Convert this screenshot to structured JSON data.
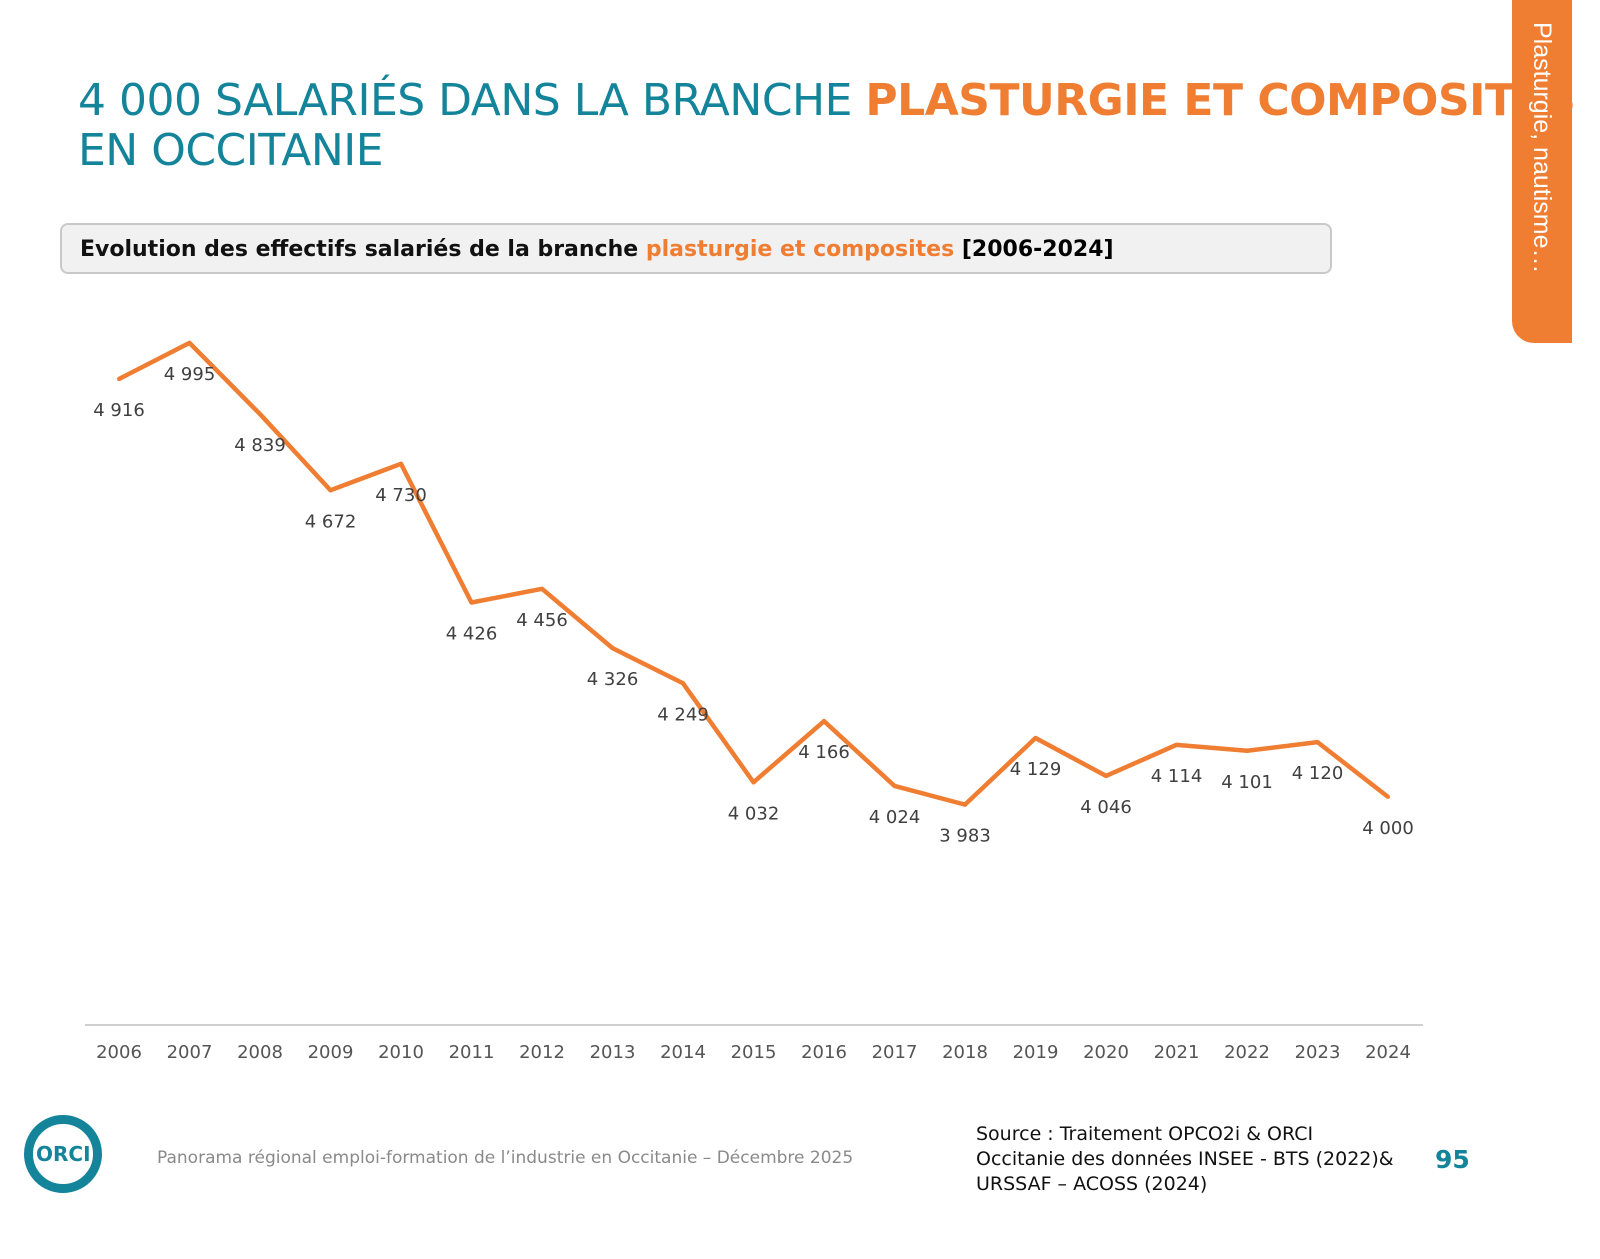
{
  "title": {
    "part1": "4 000 SALARIÉS DANS LA BRANCHE ",
    "part2": "PLASTURGIE ET COMPOSITES",
    "part3": " EN OCCITANIE"
  },
  "side_tab": "Plasturgie, nautisme…",
  "chart_data": {
    "type": "line",
    "title": {
      "part1": "Evolution des effectifs salariés de la branche ",
      "part2": "plasturgie et composites",
      "part3": " [2006-2024]"
    },
    "categories": [
      "2006",
      "2007",
      "2008",
      "2009",
      "2010",
      "2011",
      "2012",
      "2013",
      "2014",
      "2015",
      "2016",
      "2017",
      "2018",
      "2019",
      "2020",
      "2021",
      "2022",
      "2023",
      "2024"
    ],
    "values": [
      4916,
      4995,
      4839,
      4672,
      4730,
      4426,
      4456,
      4326,
      4249,
      4032,
      4166,
      4024,
      3983,
      4129,
      4046,
      4114,
      4101,
      4120,
      4000
    ],
    "data_labels": [
      "4 916",
      "4 995",
      "4 839",
      "4 672",
      "4 730",
      "4 426",
      "4 456",
      "4 326",
      "4 249",
      "4 032",
      "4 166",
      "4 024",
      "3 983",
      "4 129",
      "4 046",
      "4 114",
      "4 101",
      "4 120",
      "4 000"
    ],
    "ylim": [
      3500,
      5100
    ],
    "grid": false,
    "line_color": "#ef7d32"
  },
  "footer": "Panorama régional emploi-formation de l’industrie en Occitanie – Décembre 2025",
  "source": "Source : Traitement OPCO2i & ORCI\nOccitanie des données  INSEE - BTS (2022)&\nURSSAF – ACOSS (2024)",
  "page_number": "95",
  "logo_text": "ORCI"
}
